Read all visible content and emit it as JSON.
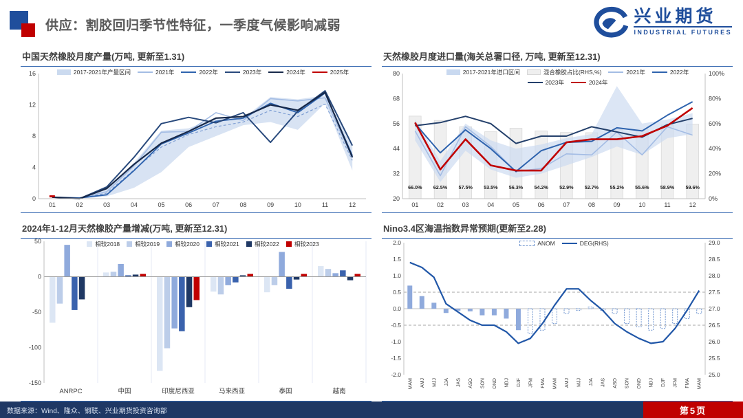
{
  "header": {
    "title": "供应：割胶回归季节性特征，一季度气候影响减弱",
    "title_color": "#595959",
    "accent_blue": "#1F4E9C",
    "accent_red": "#C00000",
    "logo": {
      "cn": "兴业期货",
      "en": "INDUSTRIAL FUTURES",
      "color": "#1F4E9C"
    }
  },
  "footer": {
    "source": "数据来源：Wind、隆众、钢联、兴业期货投资咨询部",
    "page_label": "第5页",
    "bar_color": "#1F3864",
    "accent_color": "#C00000"
  },
  "chart_data": [
    {
      "id": "china-nr-monthly-production",
      "type": "line",
      "title": "中国天然橡胶月度产量(万吨, 更新至1.31)",
      "categories": [
        "01",
        "02",
        "03",
        "04",
        "05",
        "06",
        "07",
        "08",
        "09",
        "10",
        "11",
        "12"
      ],
      "ylim": [
        0,
        16
      ],
      "yticks": [
        0,
        4,
        8,
        12,
        16
      ],
      "ytick_fmt": "int",
      "band": {
        "name": "2017-2021年产量区间",
        "color": "#CBDAEF",
        "opacity": 0.75,
        "upper": [
          0.3,
          0.1,
          1.3,
          4.6,
          8.7,
          9.0,
          10.4,
          10.3,
          13.0,
          12.7,
          13.2,
          6.9
        ],
        "lower": [
          0.1,
          0.0,
          0.3,
          1.4,
          3.4,
          6.6,
          8.0,
          9.4,
          9.8,
          8.8,
          12.2,
          3.6
        ]
      },
      "mean_dashed": [
        0.2,
        0.05,
        0.7,
        3.7,
        6.6,
        8.2,
        9.2,
        9.8,
        11.3,
        10.5,
        12.1,
        4.9
      ],
      "series": [
        {
          "name": "2021年",
          "color": "#A3BCE4",
          "width": 1.6,
          "values": [
            0.2,
            0.1,
            0.9,
            4.2,
            8.5,
            8.6,
            11.0,
            10.0,
            12.8,
            12.5,
            12.9,
            5.2
          ]
        },
        {
          "name": "2022年",
          "color": "#2E63AE",
          "width": 1.8,
          "values": [
            0.2,
            0.1,
            0.5,
            3.6,
            7.0,
            8.4,
            9.9,
            10.3,
            12.2,
            11.0,
            13.5,
            5.5
          ]
        },
        {
          "name": "2023年",
          "color": "#28497C",
          "width": 2,
          "values": [
            0.2,
            0.0,
            1.5,
            5.3,
            9.6,
            10.4,
            9.7,
            11.0,
            7.2,
            11.2,
            13.8,
            6.8
          ]
        },
        {
          "name": "2024年",
          "color": "#17294A",
          "width": 2.2,
          "values": [
            0.2,
            0.0,
            1.3,
            4.4,
            7.1,
            8.6,
            10.3,
            10.5,
            12.0,
            11.3,
            13.6,
            5.3
          ]
        },
        {
          "name": "2025年",
          "color": "#C00000",
          "width": 2.4,
          "values": [
            0.3
          ]
        }
      ]
    },
    {
      "id": "nr-monthly-imports",
      "type": "combo",
      "title": "天然橡胶月度进口量(海关总署口径, 万吨, 更新至12.31)",
      "categories": [
        "01",
        "02",
        "03",
        "04",
        "05",
        "06",
        "07",
        "08",
        "09",
        "10",
        "11",
        "12"
      ],
      "ylim": [
        20,
        80
      ],
      "yticks": [
        20,
        32,
        44,
        56,
        68,
        80
      ],
      "ytick_fmt": "int",
      "y2lim": [
        0,
        100
      ],
      "y2ticks": [
        0,
        20,
        40,
        60,
        80,
        100
      ],
      "y2tick_fmt": "pct",
      "legend_class": "lg-narrow",
      "bars": {
        "name": "混合橡胶占比(RHS,%)",
        "fill": "#EFEFEF",
        "stroke": "#D8D8D8",
        "values": [
          66.0,
          62.5,
          57.5,
          53.5,
          56.3,
          54.2,
          52.9,
          52.7,
          55.2,
          55.6,
          58.9,
          59.6
        ],
        "labels": [
          "66.0%",
          "62.5%",
          "57.5%",
          "53.5%",
          "56.3%",
          "54.2%",
          "52.9%",
          "52.7%",
          "55.2%",
          "55.6%",
          "58.9%",
          "59.6%"
        ]
      },
      "band": {
        "name": "2017-2021年进口区间",
        "color": "#C9D9F0",
        "opacity": 0.65,
        "upper": [
          58,
          38,
          56,
          48,
          44,
          46,
          49,
          51,
          74,
          56,
          58,
          61
        ],
        "lower": [
          48,
          28,
          43,
          34,
          30,
          32,
          36,
          40,
          45,
          41,
          49,
          51
        ]
      },
      "series": [
        {
          "name": "2021年",
          "color": "#A3BCE4",
          "width": 1.6,
          "values": [
            52.5,
            31,
            54.5,
            45,
            33,
            34.5,
            41.5,
            41,
            52,
            41,
            54.5,
            50.5
          ]
        },
        {
          "name": "2022年",
          "color": "#2E63AE",
          "width": 2,
          "values": [
            56,
            42,
            53,
            44,
            33,
            43,
            47,
            47.5,
            54,
            52.5,
            60,
            66.5
          ]
        },
        {
          "name": "2023年",
          "color": "#24406B",
          "width": 2,
          "values": [
            55,
            56.5,
            59.5,
            56,
            46.5,
            50,
            50,
            54.5,
            52,
            49.5,
            55.5,
            58.5
          ]
        },
        {
          "name": "2024年",
          "color": "#C00000",
          "width": 2.6,
          "values": [
            56.5,
            34,
            48.5,
            36,
            33.5,
            33.5,
            47,
            48.5,
            48.5,
            50,
            55,
            63.5
          ]
        }
      ]
    },
    {
      "id": "nr-2024-production-change",
      "type": "grouped-bar",
      "title": "2024年1-12月天然橡胶产量增减(万吨, 更新至12.31)",
      "categories": [
        "ANRPC",
        "中国",
        "印度尼西亚",
        "马来西亚",
        "泰国",
        "越南"
      ],
      "ylim": [
        -150,
        50
      ],
      "yticks": [
        50,
        0,
        -50,
        -100,
        -150
      ],
      "series": [
        {
          "name": "相较2018",
          "color": "#DCE6F4",
          "values": [
            -65,
            6,
            -133,
            -21,
            -22,
            15
          ]
        },
        {
          "name": "相较2019",
          "color": "#BCCDE9",
          "values": [
            -38,
            7,
            -101,
            -25,
            -12,
            11
          ]
        },
        {
          "name": "相较2020",
          "color": "#8FAADC",
          "values": [
            45,
            18,
            -73,
            -12,
            35,
            5
          ]
        },
        {
          "name": "相较2021",
          "color": "#3A62AD",
          "values": [
            -47,
            2,
            -77,
            -8,
            -17,
            9
          ]
        },
        {
          "name": "相较2022",
          "color": "#1F3864",
          "values": [
            -32,
            3,
            -43,
            2,
            -4,
            -5
          ]
        },
        {
          "name": "相较2023",
          "color": "#C00000",
          "values": [
            0,
            4,
            -33,
            4,
            4,
            4
          ]
        }
      ]
    },
    {
      "id": "nino34-anomaly-forecast",
      "type": "anom",
      "title": "Nino3.4区海温指数异常预期(更新至2.28)",
      "categories": [
        "MAM",
        "AMJ",
        "MJJ",
        "JJA",
        "JAS",
        "ASO",
        "SON",
        "OND",
        "NDJ",
        "DJF",
        "JFM",
        "FMA",
        "MAM",
        "AMJ",
        "MJJ",
        "JJA",
        "JAS",
        "ASO",
        "SON",
        "OND",
        "NDJ",
        "DJF",
        "JFM",
        "FMA",
        "MAM"
      ],
      "ylim": [
        -2,
        2
      ],
      "yticks": [
        2,
        1.5,
        1,
        0.5,
        0,
        -0.5,
        -1,
        -1.5,
        -2
      ],
      "y2lim": [
        25,
        29
      ],
      "y2ticks": [
        29,
        28.5,
        28,
        27.5,
        27,
        26.5,
        26,
        25.5,
        25
      ],
      "ref_lines": [
        0.5,
        -0.5
      ],
      "anom": {
        "name": "ANOM",
        "fill": "#8FAADC",
        "outline": "#6E94CF",
        "solid_count": 10,
        "values": [
          0.7,
          0.38,
          0.18,
          -0.13,
          -0.06,
          -0.08,
          -0.2,
          -0.2,
          -0.3,
          -0.65,
          -0.75,
          -0.65,
          -0.45,
          -0.15,
          -0.05,
          0.05,
          -0.05,
          -0.15,
          -0.45,
          -0.55,
          -0.65,
          -0.6,
          -0.45,
          -0.3,
          -0.15
        ]
      },
      "deg": {
        "name": "DEG(RHS)",
        "color": "#2157A8",
        "values": [
          28.4,
          28.25,
          27.95,
          27.15,
          26.9,
          26.65,
          26.5,
          26.5,
          26.3,
          25.95,
          26.1,
          26.55,
          27.1,
          27.6,
          27.6,
          27.25,
          26.95,
          26.55,
          26.3,
          26.1,
          25.95,
          26.0,
          26.4,
          26.95,
          27.55
        ]
      }
    }
  ]
}
